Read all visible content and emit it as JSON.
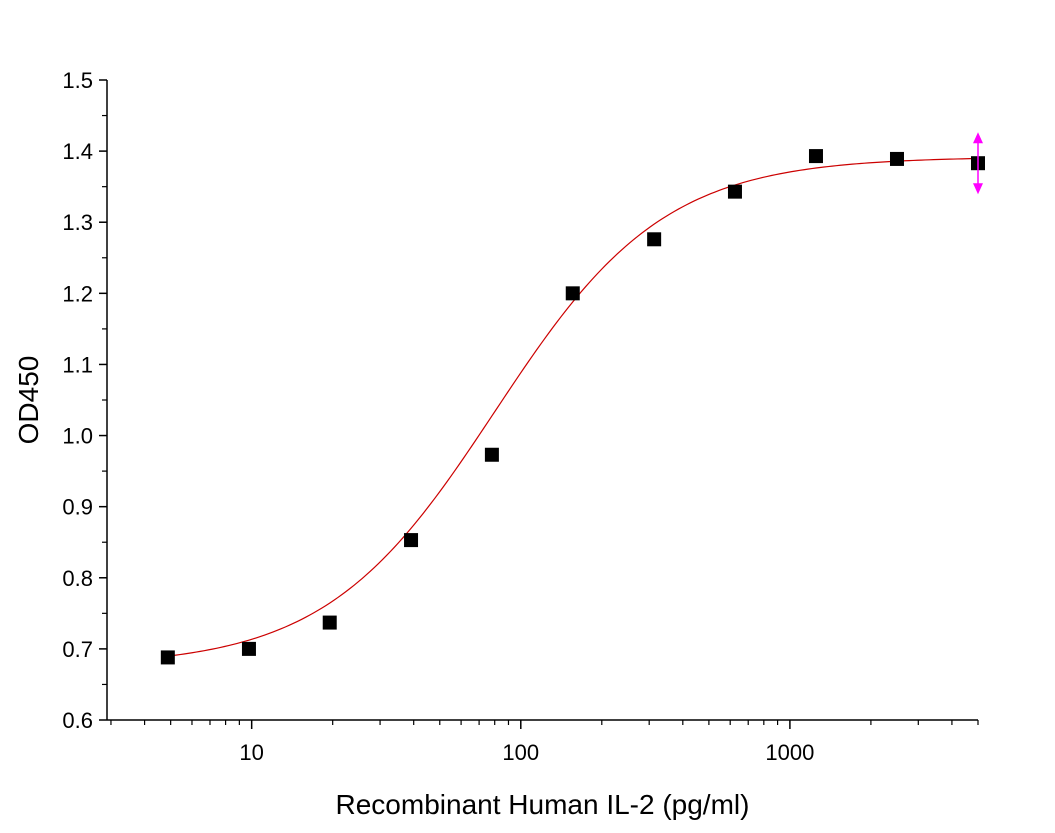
{
  "chart_data": {
    "type": "scatter",
    "xlabel": "Recombinant Human IL-2 (pg/ml)",
    "ylabel": "OD450",
    "xscale": "log",
    "xlim": [
      2.9,
      5000
    ],
    "ylim": [
      0.6,
      1.5
    ],
    "xticks": [
      10,
      100,
      1000
    ],
    "xtick_labels": [
      "10",
      "100",
      "1000"
    ],
    "yticks": [
      0.6,
      0.7,
      0.8,
      0.9,
      1.0,
      1.1,
      1.2,
      1.3,
      1.4,
      1.5
    ],
    "ytick_labels": [
      "0.6",
      "0.7",
      "0.8",
      "0.9",
      "1.0",
      "1.1",
      "1.2",
      "1.3",
      "1.4",
      "1.5"
    ],
    "grid": false,
    "series": [
      {
        "marker": "square",
        "color": "#000000",
        "x": [
          4.88,
          9.77,
          19.5,
          39.1,
          78.1,
          156,
          313,
          625,
          1250,
          2500,
          5000
        ],
        "y": [
          0.688,
          0.7,
          0.737,
          0.853,
          0.973,
          1.2,
          1.276,
          1.343,
          1.393,
          1.389,
          1.383
        ]
      }
    ],
    "fit": {
      "model": "4PL",
      "color": "#cc0000",
      "bottom": 0.675,
      "top": 1.392,
      "ec50": 80,
      "hill": 1.38
    },
    "indicator": {
      "color": "#ff00ff",
      "x": 5000
    }
  }
}
